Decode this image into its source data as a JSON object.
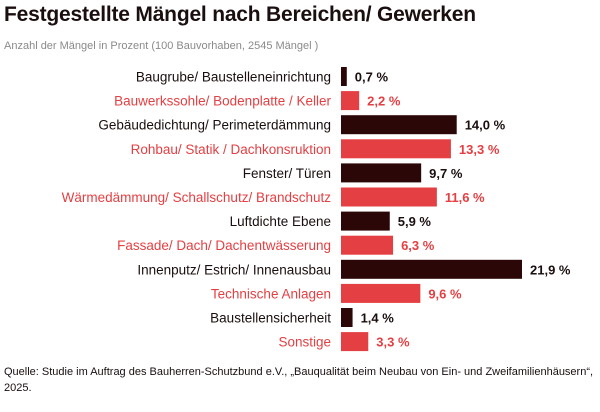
{
  "header": {
    "title": "Festgestellte Mängel nach Bereichen/ Gewerken",
    "subtitle": "Anzahl der Mängel in Prozent (100 Bauvorhaben, 2545 Mängel )"
  },
  "colors": {
    "dark": "#2b0708",
    "accent": "#e43f42"
  },
  "chart_data": {
    "type": "bar",
    "orientation": "horizontal",
    "categories": [
      "Baugrube/ Baustelleneinrichtung",
      "Bauwerkssohle/ Bodenplatte / Keller",
      "Gebäudedichtung/ Perimeterdämmung",
      "Rohbau/ Statik / Dachkonsruktion",
      "Fenster/ Türen",
      "Wärmedämmung/ Schallschutz/ Brandschutz",
      "Luftdichte Ebene",
      "Fassade/ Dach/ Dachentwässerung",
      "Innenputz/ Estrich/ Innenausbau",
      "Technische Anlagen",
      "Baustellensicherheit",
      "Sonstige"
    ],
    "values": [
      0.7,
      2.2,
      14.0,
      13.3,
      9.7,
      11.6,
      5.9,
      6.3,
      21.9,
      9.6,
      1.4,
      3.3
    ],
    "value_labels": [
      "0,7 %",
      "2,2 %",
      "14,0 %",
      "13,3 %",
      "9,7 %",
      "11,6 %",
      "5,9 %",
      "6,3 %",
      "21,9 %",
      "9,6 %",
      "1,4 %",
      "3,3 %"
    ],
    "xlim": [
      0,
      21.9
    ],
    "grid": false,
    "legend": "none",
    "bar_colors": [
      "dark",
      "accent",
      "dark",
      "accent",
      "dark",
      "accent",
      "dark",
      "accent",
      "dark",
      "accent",
      "dark",
      "accent"
    ]
  },
  "footer": {
    "source": "Quelle: Studie im Auftrag des Bauherren-Schutzbund e.V., „Bauqualität beim Neubau von Ein- und Zweifamilienhäusern“, 2025."
  }
}
